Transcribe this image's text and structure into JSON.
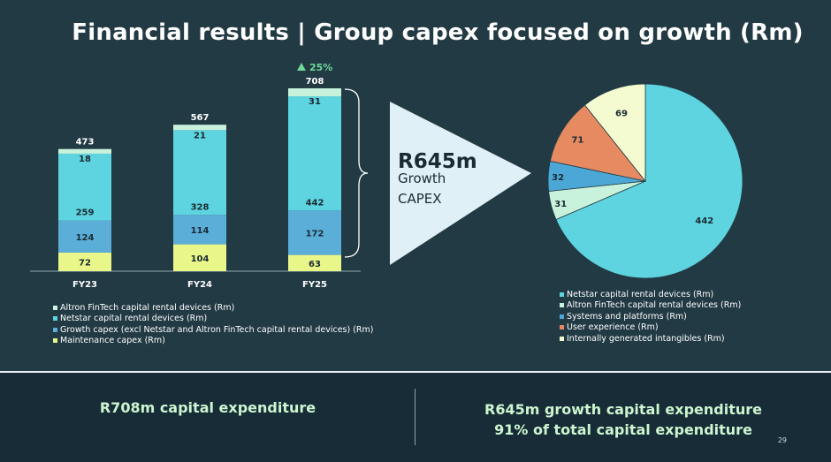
{
  "title": "Financial results | Group capex focused on growth (Rm)",
  "colors": {
    "altron": "#c9f2dc",
    "netstar": "#5dd4df",
    "growth": "#5aaed8",
    "maintenance": "#e9f78a",
    "systems": "#4ba8d6",
    "user_experience": "#e68a62",
    "intangibles": "#f5fbd0"
  },
  "chart_data": [
    {
      "type": "bar",
      "stacked": true,
      "categories": [
        "FY23",
        "FY24",
        "FY25"
      ],
      "series": [
        {
          "name": "Maintenance capex (Rm)",
          "values": [
            72,
            104,
            63
          ]
        },
        {
          "name": "Growth capex (excl Netstar and Altron FinTech capital rental devices) (Rm)",
          "values": [
            124,
            114,
            172
          ]
        },
        {
          "name": "Netstar capital rental devices (Rm)",
          "values": [
            259,
            328,
            442
          ]
        },
        {
          "name": "Altron FinTech capital rental devices (Rm)",
          "values": [
            18,
            21,
            31
          ]
        }
      ],
      "totals": [
        "473",
        "567",
        "708"
      ],
      "growth_label": "25%",
      "legend": [
        "Altron FinTech capital rental devices (Rm)",
        "Netstar capital rental devices (Rm)",
        "Growth capex (excl Netstar and Altron FinTech capital rental devices) (Rm)",
        "Maintenance capex (Rm)"
      ]
    },
    {
      "type": "pie",
      "title": "R645m Growth CAPEX",
      "slices": [
        {
          "name": "Netstar capital rental devices (Rm)",
          "value": 442
        },
        {
          "name": "Altron FinTech capital rental devices (Rm)",
          "value": 31
        },
        {
          "name": "Systems and platforms (Rm)",
          "value": 32
        },
        {
          "name": "User experience (Rm)",
          "value": 71
        },
        {
          "name": "Internally generated intangibles (Rm)",
          "value": 69
        }
      ]
    }
  ],
  "callout": {
    "amount": "R645m",
    "line1": "Growth",
    "line2": "CAPEX"
  },
  "bottom": {
    "left": "R708m capital expenditure",
    "right_line1": "R645m growth capital expenditure",
    "right_line2": "91% of total capital expenditure",
    "page_number": "29"
  }
}
